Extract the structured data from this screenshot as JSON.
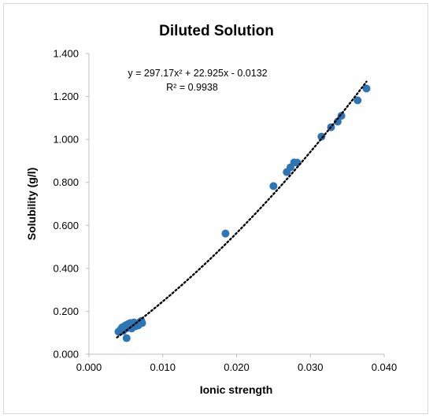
{
  "chart_data": {
    "type": "scatter",
    "title": "Diluted Solution",
    "xlabel": "Ionic strength",
    "ylabel": "Solubility (g/l)",
    "xlim": [
      0.0,
      0.04
    ],
    "ylim": [
      0.0,
      1.4
    ],
    "xticks": [
      "0.000",
      "0.010",
      "0.020",
      "0.030",
      "0.040"
    ],
    "yticks": [
      "0.000",
      "0.200",
      "0.400",
      "0.600",
      "0.800",
      "1.000",
      "1.200",
      "1.400"
    ],
    "grid": false,
    "marker_color": "#2e75b6",
    "trendline": {
      "type": "polynomial-2",
      "coefficients": [
        297.17,
        22.925,
        -0.0132
      ],
      "x_range": [
        0.0038,
        0.0376
      ],
      "style": "dotted",
      "color": "#000000",
      "equation": "y = 297.17x² + 22.925x - 0.0132",
      "r_squared": "R² = 0.9938"
    },
    "points": [
      {
        "x": 0.004,
        "y": 0.105
      },
      {
        "x": 0.0043,
        "y": 0.115
      },
      {
        "x": 0.0045,
        "y": 0.125
      },
      {
        "x": 0.0046,
        "y": 0.108
      },
      {
        "x": 0.0048,
        "y": 0.13
      },
      {
        "x": 0.0049,
        "y": 0.118
      },
      {
        "x": 0.005,
        "y": 0.135
      },
      {
        "x": 0.0051,
        "y": 0.075
      },
      {
        "x": 0.0052,
        "y": 0.122
      },
      {
        "x": 0.0053,
        "y": 0.14
      },
      {
        "x": 0.0055,
        "y": 0.128
      },
      {
        "x": 0.0056,
        "y": 0.145
      },
      {
        "x": 0.0058,
        "y": 0.12
      },
      {
        "x": 0.006,
        "y": 0.138
      },
      {
        "x": 0.0061,
        "y": 0.148
      },
      {
        "x": 0.0063,
        "y": 0.13
      },
      {
        "x": 0.0065,
        "y": 0.142
      },
      {
        "x": 0.0067,
        "y": 0.135
      },
      {
        "x": 0.0069,
        "y": 0.15
      },
      {
        "x": 0.0071,
        "y": 0.155
      },
      {
        "x": 0.0072,
        "y": 0.145
      },
      {
        "x": 0.0185,
        "y": 0.562
      },
      {
        "x": 0.025,
        "y": 0.783
      },
      {
        "x": 0.0268,
        "y": 0.848
      },
      {
        "x": 0.0273,
        "y": 0.87
      },
      {
        "x": 0.0278,
        "y": 0.893
      },
      {
        "x": 0.0282,
        "y": 0.892
      },
      {
        "x": 0.0315,
        "y": 1.013
      },
      {
        "x": 0.0328,
        "y": 1.057
      },
      {
        "x": 0.0337,
        "y": 1.083
      },
      {
        "x": 0.0342,
        "y": 1.11
      },
      {
        "x": 0.0364,
        "y": 1.182
      },
      {
        "x": 0.0376,
        "y": 1.237
      }
    ]
  }
}
